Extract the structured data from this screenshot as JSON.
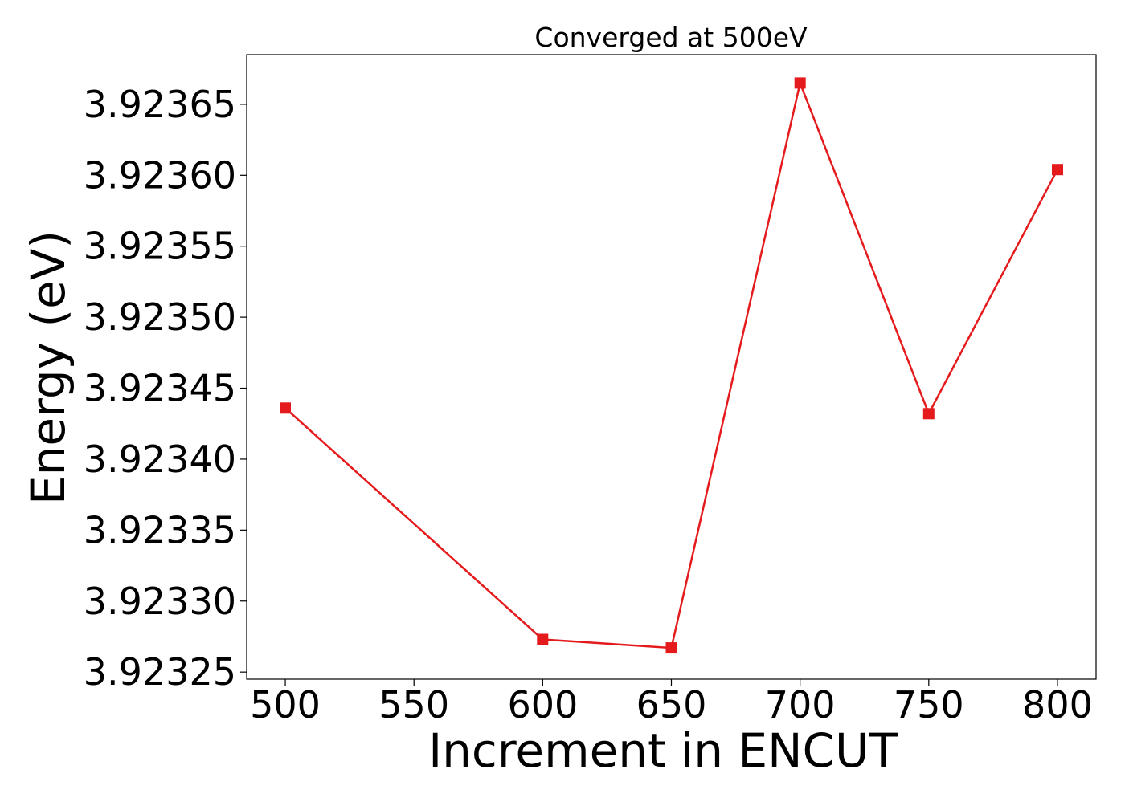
{
  "chart_data": {
    "type": "line",
    "title": "Converged at 500eV",
    "xlabel": "Increment in ENCUT",
    "ylabel": "Energy (eV)",
    "x": [
      500,
      600,
      650,
      700,
      750,
      800
    ],
    "series": [
      {
        "values": [
          3.923436,
          3.923273,
          3.923267,
          3.923665,
          3.923432,
          3.923604
        ],
        "color": "#e41a1c",
        "marker": "square"
      }
    ],
    "xlim": [
      485,
      815
    ],
    "ylim": [
      3.923245,
      3.923685
    ],
    "xticks": [
      500,
      550,
      600,
      650,
      700,
      750,
      800
    ],
    "xtick_labels": [
      "500",
      "550",
      "600",
      "650",
      "700",
      "750",
      "800"
    ],
    "yticks": [
      3.92325,
      3.9233,
      3.92335,
      3.9234,
      3.92345,
      3.9235,
      3.92355,
      3.9236,
      3.92365
    ],
    "ytick_labels": [
      "3.92325",
      "3.92330",
      "3.92335",
      "3.92340",
      "3.92345",
      "3.92350",
      "3.92355",
      "3.92360",
      "3.92365"
    ],
    "grid": false,
    "legend": "none"
  }
}
